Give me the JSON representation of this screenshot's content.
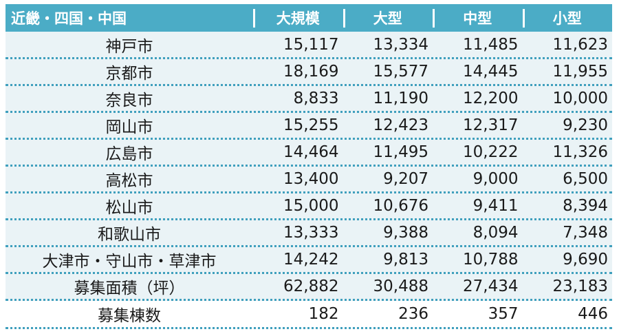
{
  "header": {
    "region": "近畿・四国・中国",
    "columns": [
      "大規模",
      "大型",
      "中型",
      "小型"
    ]
  },
  "rows": [
    {
      "city": "神戸市",
      "values": [
        "15,117",
        "13,334",
        "11,485",
        "11,623"
      ]
    },
    {
      "city": "京都市",
      "values": [
        "18,169",
        "15,577",
        "14,445",
        "11,955"
      ]
    },
    {
      "city": "奈良市",
      "values": [
        "8,833",
        "11,190",
        "12,200",
        "10,000"
      ]
    },
    {
      "city": "岡山市",
      "values": [
        "15,255",
        "12,423",
        "12,317",
        "9,230"
      ]
    },
    {
      "city": "広島市",
      "values": [
        "14,464",
        "11,495",
        "10,222",
        "11,326"
      ]
    },
    {
      "city": "高松市",
      "values": [
        "13,400",
        "9,207",
        "9,000",
        "6,500"
      ]
    },
    {
      "city": "松山市",
      "values": [
        "15,000",
        "10,676",
        "9,411",
        "8,394"
      ]
    },
    {
      "city": "和歌山市",
      "values": [
        "13,333",
        "9,388",
        "8,094",
        "7,348"
      ]
    },
    {
      "city": "大津市・守山市・草津市",
      "values": [
        "14,242",
        "9,813",
        "10,788",
        "9,690"
      ]
    },
    {
      "city": "募集面積（坪）",
      "values": [
        "62,882",
        "30,488",
        "27,434",
        "23,183"
      ]
    },
    {
      "city": "募集棟数",
      "values": [
        "182",
        "236",
        "357",
        "446"
      ]
    }
  ],
  "colors": {
    "header_bg": "#4BACC6",
    "row_bg": "#eaf3f6",
    "divider": "#3f9fbd"
  }
}
